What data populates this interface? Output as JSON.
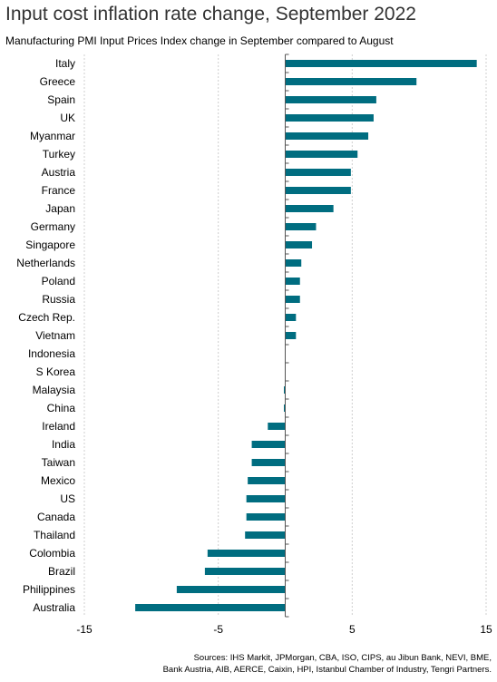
{
  "chart_data": {
    "type": "bar",
    "orientation": "horizontal",
    "title": "Input cost inflation rate change, September 2022",
    "subtitle": "Manufacturing PMI Input Prices Index change in September compared to August",
    "categories": [
      "Italy",
      "Greece",
      "Spain",
      "UK",
      "Myanmar",
      "Turkey",
      "Austria",
      "France",
      "Japan",
      "Germany",
      "Singapore",
      "Netherlands",
      "Poland",
      "Russia",
      "Czech Rep.",
      "Vietnam",
      "Indonesia",
      "S Korea",
      "Malaysia",
      "China",
      "Ireland",
      "India",
      "Taiwan",
      "Mexico",
      "US",
      "Canada",
      "Thailand",
      "Colombia",
      "Brazil",
      "Philippines",
      "Australia"
    ],
    "values": [
      14.3,
      9.8,
      6.8,
      6.6,
      6.2,
      5.4,
      4.9,
      4.9,
      3.6,
      2.3,
      2.0,
      1.2,
      1.1,
      1.1,
      0.8,
      0.8,
      0.0,
      0.0,
      -0.1,
      -0.1,
      -1.3,
      -2.5,
      -2.5,
      -2.8,
      -2.9,
      -2.9,
      -3.0,
      -5.8,
      -6.0,
      -8.1,
      -11.2
    ],
    "xlim": [
      -15,
      15
    ],
    "xticks": [
      -15,
      -5,
      5,
      15
    ],
    "xtick_labels": [
      "-15",
      "-5",
      "5",
      "15"
    ],
    "grid": "vertical",
    "legend": "none",
    "bar_color": "#006d80"
  },
  "sources": {
    "line1": "Sources: IHS Markit, JPMorgan, CBA, ISO, CIPS, au Jibun Bank, NEVI, BME,",
    "line2": "Bank Austria, AIB, AERCE, Caixin, HPI, Istanbul Chamber of Industry, Tengri Partners."
  }
}
